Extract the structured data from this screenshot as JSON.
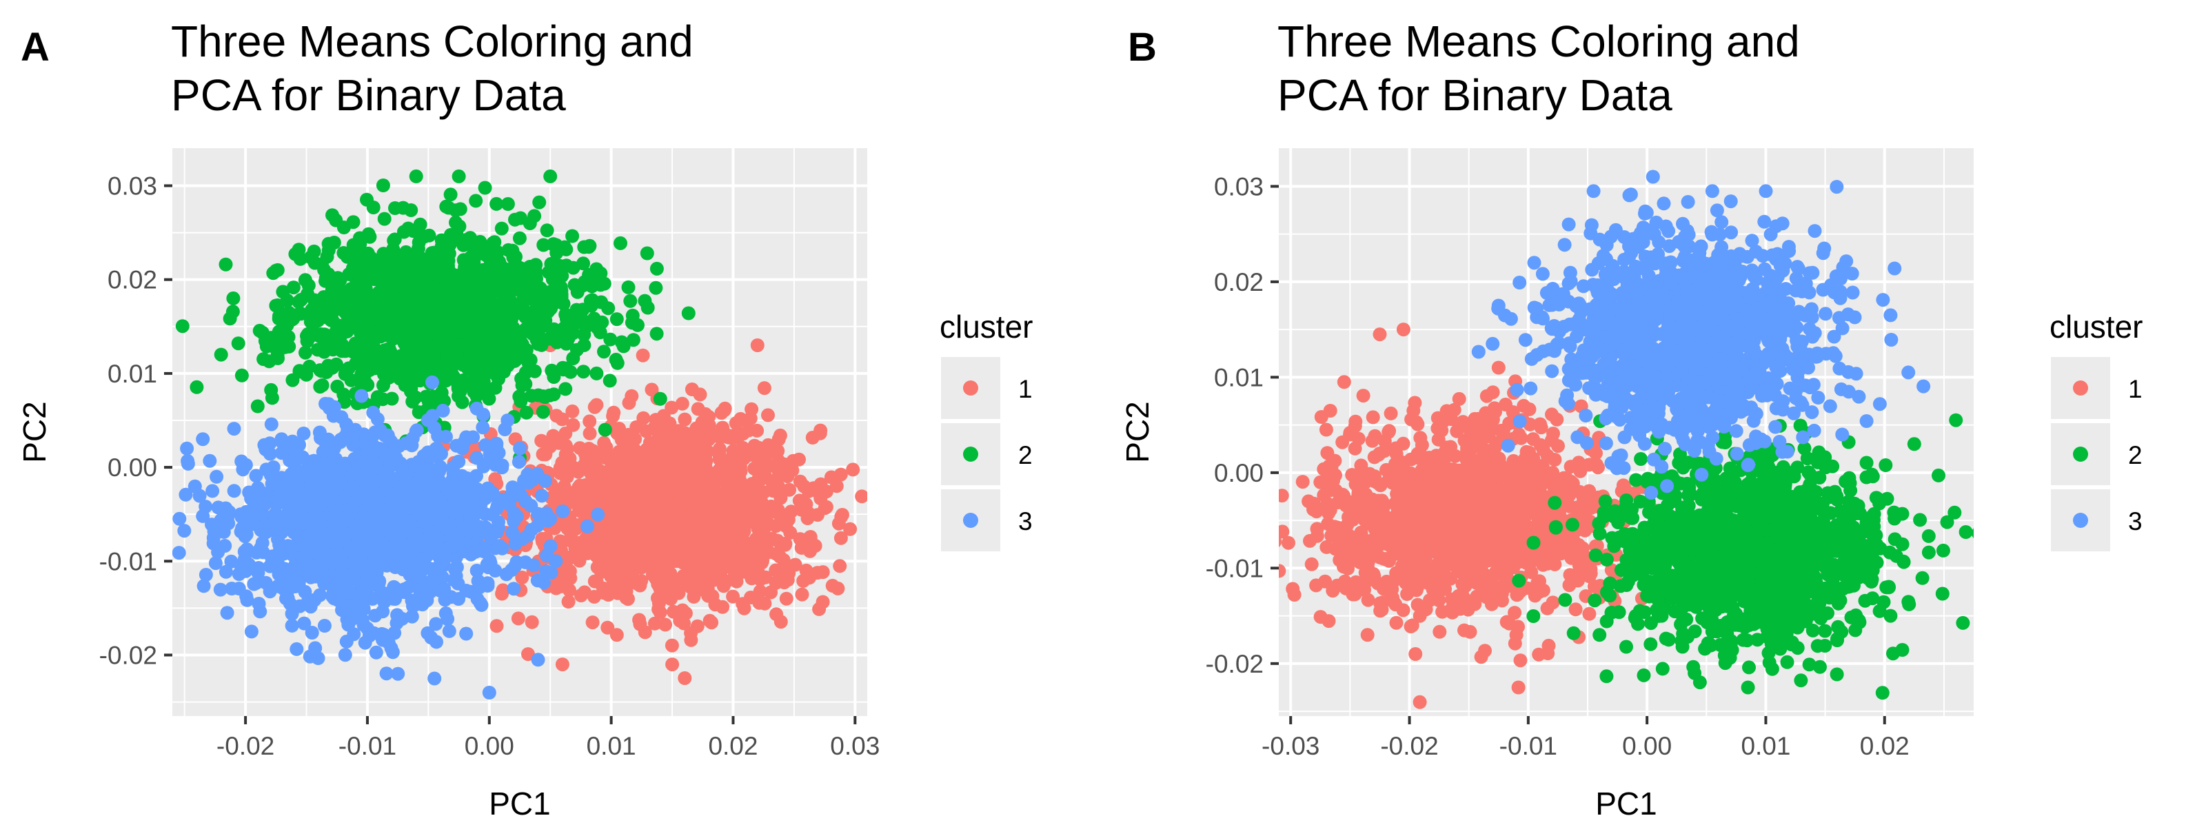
{
  "chart_data": [
    {
      "panel": "A",
      "type": "scatter",
      "title": "Three Means Coloring and\nPCA for Binary Data",
      "xlabel": "PC1",
      "ylabel": "PC2",
      "xlim": [
        -0.026,
        0.031
      ],
      "ylim": [
        -0.0265,
        0.034
      ],
      "xticks": [
        -0.02,
        -0.01,
        0.0,
        0.01,
        0.02,
        0.03
      ],
      "xtick_labels": [
        "-0.02",
        "-0.01",
        "0.00",
        "0.01",
        "0.02",
        "0.03"
      ],
      "yticks": [
        -0.02,
        -0.01,
        0.0,
        0.01,
        0.02,
        0.03
      ],
      "ytick_labels": [
        "-0.02",
        "-0.01",
        "0.00",
        "0.01",
        "0.02",
        "0.03"
      ],
      "grid": true,
      "legend": {
        "title": "cluster",
        "position": "right"
      },
      "series": [
        {
          "name": "1",
          "color": "#F8766D",
          "center": [
            0.0145,
            -0.005
          ],
          "spread": [
            0.0058,
            0.0052
          ],
          "count": 1400,
          "points": [
            [
              0.005,
              0.013
            ],
            [
              0.022,
              0.013
            ],
            [
              0.0285,
              -0.002
            ],
            [
              0.026,
              -0.011
            ],
            [
              0.015,
              -0.021
            ],
            [
              0.006,
              -0.021
            ],
            [
              0.0035,
              -0.0165
            ],
            [
              0.0055,
              0.0055
            ]
          ]
        },
        {
          "name": "2",
          "color": "#00BA38",
          "center": [
            -0.0045,
            0.016
          ],
          "spread": [
            0.0062,
            0.0045
          ],
          "count": 1400,
          "points": [
            [
              -0.006,
              0.031
            ],
            [
              -0.0025,
              0.031
            ],
            [
              0.005,
              0.031
            ],
            [
              -0.021,
              0.018
            ],
            [
              -0.022,
              0.012
            ],
            [
              0.013,
              0.017
            ],
            [
              0.0095,
              0.004
            ],
            [
              0.0025,
              0.001
            ],
            [
              -0.019,
              0.0065
            ]
          ]
        },
        {
          "name": "3",
          "color": "#619CFF",
          "center": [
            -0.0095,
            -0.006
          ],
          "spread": [
            0.0058,
            0.005
          ],
          "count": 1400,
          "points": [
            [
              -0.0235,
              -0.0052
            ],
            [
              -0.0235,
              0.003
            ],
            [
              -0.0215,
              -0.0155
            ],
            [
              -0.0195,
              -0.0175
            ],
            [
              -0.0045,
              -0.0225
            ],
            [
              -0.0075,
              -0.022
            ],
            [
              -0.0,
              -0.024
            ],
            [
              0.004,
              -0.0205
            ],
            [
              0.005,
              -0.0055
            ],
            [
              0.0015,
              0.005
            ],
            [
              -0.011,
              0.004
            ]
          ]
        }
      ]
    },
    {
      "panel": "B",
      "type": "scatter",
      "title": "Three Means Coloring and\nPCA for Binary Data",
      "xlabel": "PC1",
      "ylabel": "PC2",
      "xlim": [
        -0.031,
        0.0275
      ],
      "ylim": [
        -0.0255,
        0.034
      ],
      "xticks": [
        -0.03,
        -0.02,
        -0.01,
        0.0,
        0.01,
        0.02
      ],
      "xtick_labels": [
        "-0.03",
        "-0.02",
        "-0.01",
        "0.00",
        "0.01",
        "0.02"
      ],
      "yticks": [
        -0.02,
        -0.01,
        0.0,
        0.01,
        0.02,
        0.03
      ],
      "ytick_labels": [
        "-0.02",
        "-0.01",
        "0.00",
        "0.01",
        "0.02",
        "0.03"
      ],
      "grid": true,
      "legend": {
        "title": "cluster",
        "position": "right"
      },
      "series": [
        {
          "name": "1",
          "color": "#F8766D",
          "center": [
            -0.0155,
            -0.0045
          ],
          "spread": [
            0.0058,
            0.005
          ],
          "count": 1400,
          "points": [
            [
              -0.0285,
              -0.003
            ],
            [
              -0.0275,
              -0.001
            ],
            [
              -0.027,
              0.0045
            ],
            [
              -0.0255,
              0.0095
            ],
            [
              -0.0225,
              0.0145
            ],
            [
              -0.0205,
              0.015
            ],
            [
              -0.0195,
              -0.019
            ],
            [
              -0.011,
              -0.017
            ],
            [
              -0.0035,
              -0.003
            ],
            [
              -0.0065,
              0.007
            ],
            [
              -0.0125,
              0.011
            ]
          ]
        },
        {
          "name": "2",
          "color": "#00BA38",
          "center": [
            0.0085,
            -0.0085
          ],
          "spread": [
            0.0056,
            0.0048
          ],
          "count": 1400,
          "points": [
            [
              0.026,
              0.0055
            ],
            [
              0.0225,
              0.003
            ],
            [
              0.0215,
              -0.0075
            ],
            [
              0.0205,
              -0.015
            ],
            [
              0.0085,
              -0.0225
            ],
            [
              0.004,
              -0.021
            ],
            [
              -0.004,
              -0.017
            ],
            [
              -0.0035,
              -0.003
            ],
            [
              0.0015,
              0.0025
            ],
            [
              0.0135,
              0.0015
            ]
          ]
        },
        {
          "name": "3",
          "color": "#619CFF",
          "center": [
            0.0035,
            0.0145
          ],
          "spread": [
            0.0055,
            0.0053
          ],
          "count": 1400,
          "points": [
            [
              -0.0045,
              0.0295
            ],
            [
              0.0005,
              0.031
            ],
            [
              0.0055,
              0.0295
            ],
            [
              0.01,
              0.0295
            ],
            [
              -0.0095,
              0.022
            ],
            [
              -0.0125,
              0.0175
            ],
            [
              -0.013,
              0.0135
            ],
            [
              0.0165,
              0.0215
            ],
            [
              0.0205,
              0.0165
            ],
            [
              0.022,
              0.0105
            ],
            [
              0.0015,
              0.0025
            ],
            [
              -0.003,
              0.001
            ]
          ]
        }
      ]
    }
  ]
}
